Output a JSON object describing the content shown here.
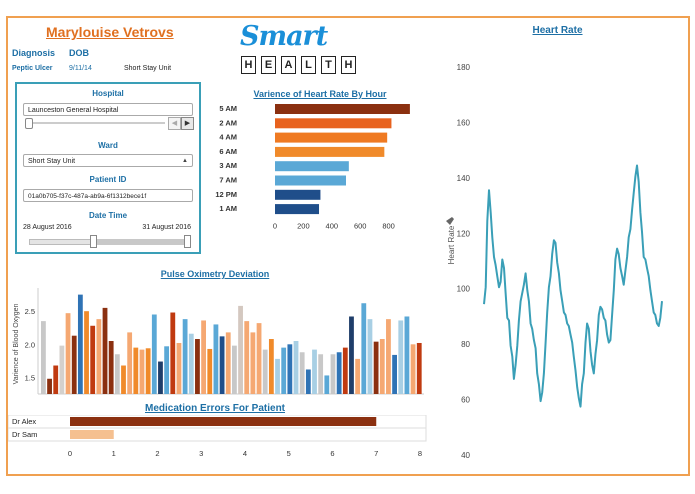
{
  "patient": {
    "name": "Marylouise Vetrovs"
  },
  "info": {
    "diagnosis_label": "Diagnosis",
    "dob_label": "DOB",
    "diagnosis_value": "Peptic Ulcer",
    "dob_value": "9/11/14",
    "unit_value": "Short Stay Unit"
  },
  "logo": {
    "smart": "Smart",
    "health_letters": [
      "H",
      "E",
      "A",
      "L",
      "T",
      "H"
    ]
  },
  "filters": {
    "hospital_label": "Hospital",
    "hospital_value": "Launceston General Hospital",
    "ward_label": "Ward",
    "ward_value": "Short Stay Unit",
    "patient_id_label": "Patient ID",
    "patient_id_value": "01a0b705-f37c-487a-ab9a-6f1312bece1f",
    "date_label": "Date Time",
    "date_start": "28 August 2016",
    "date_end": "31 August 2016",
    "hospital_slider_level": 0.0,
    "date_range_fraction": [
      0.4,
      1.0
    ]
  },
  "heart_variance": {
    "title": "Varience of Heart Rate By Hour",
    "chart_data": {
      "type": "bar",
      "orientation": "horizontal",
      "categories": [
        "5 AM",
        "2 AM",
        "4 AM",
        "6 AM",
        "3 AM",
        "7 AM",
        "12 PM",
        "1 AM"
      ],
      "values": [
        950,
        820,
        790,
        770,
        520,
        500,
        320,
        310
      ],
      "colors": [
        "#8b3010",
        "#e8621e",
        "#ef7a22",
        "#f08a2a",
        "#5aa8d6",
        "#5aa8d6",
        "#1f4e8a",
        "#1f4e8a"
      ],
      "x_ticks": [
        0,
        200,
        400,
        600,
        800
      ],
      "xlim": [
        0,
        1000
      ]
    }
  },
  "pulse": {
    "title": "Pulse Oximetry Deviation",
    "chart_data": {
      "type": "bar",
      "ylabel": "Varience of Blood Oxygen",
      "y_ticks": [
        1.5,
        2.0,
        2.5
      ],
      "ylim": [
        1.25,
        2.85
      ],
      "values": [
        2.35,
        1.48,
        1.68,
        1.98,
        2.47,
        2.13,
        2.75,
        2.5,
        2.28,
        2.38,
        2.55,
        2.05,
        1.85,
        1.68,
        2.18,
        1.95,
        1.92,
        1.94,
        2.45,
        1.74,
        1.97,
        2.48,
        2.02,
        2.38,
        2.16,
        2.08,
        2.36,
        1.93,
        2.3,
        2.12,
        2.18,
        1.98,
        2.58,
        2.35,
        2.18,
        2.32,
        1.92,
        2.08,
        1.78,
        1.95,
        2.0,
        2.05,
        1.88,
        1.62,
        1.92,
        1.85,
        1.53,
        1.85,
        1.88,
        1.95,
        2.42,
        1.78,
        2.62,
        2.38,
        2.04,
        2.08,
        2.38,
        1.84,
        2.36,
        2.42,
        2.0,
        2.02
      ],
      "colors": [
        "#c8c8c8",
        "#8b3010",
        "#c03a10",
        "#d4d0cc",
        "#f5a872",
        "#8b3010",
        "#2f73b5",
        "#f08a2a",
        "#c03a10",
        "#f5a872",
        "#8b3010",
        "#8b3010",
        "#c8c8c8",
        "#f08a2a",
        "#f5a872",
        "#f08a2a",
        "#f5a872",
        "#f08a2a",
        "#5aa8d6",
        "#1f3e6a",
        "#5aa8d6",
        "#c03a10",
        "#f5a872",
        "#5aa8d6",
        "#a8cfe4",
        "#8b3010",
        "#f5a872",
        "#f08a2a",
        "#5aa8d6",
        "#1f4e8a",
        "#f5a872",
        "#c8c8c8",
        "#d4c8c0",
        "#f5a872",
        "#f5a872",
        "#f5a872",
        "#c8c8c8",
        "#f08a2a",
        "#a8cfe4",
        "#5aa8d6",
        "#2f73b5",
        "#a8cfe4",
        "#c8c8c8",
        "#2f73b5",
        "#a8cfe4",
        "#c8c8c8",
        "#5aa8d6",
        "#c8c8c8",
        "#2f73b5",
        "#c03a10",
        "#1f3e6a",
        "#f5a872",
        "#5aa8d6",
        "#a8cfe4",
        "#8b3010",
        "#f5a872",
        "#f5a872",
        "#2f73b5",
        "#a8cfe4",
        "#5aa8d6",
        "#f5a872",
        "#c03a10"
      ]
    }
  },
  "medication": {
    "title": "Medication Errors For Patient",
    "chart_data": {
      "type": "bar",
      "orientation": "horizontal",
      "categories": [
        "Dr Alex",
        "Dr Sam"
      ],
      "values": [
        7,
        1
      ],
      "colors": [
        "#8b3010",
        "#f5c090"
      ],
      "x_ticks": [
        0,
        1,
        2,
        3,
        4,
        5,
        6,
        7,
        8
      ],
      "xlim": [
        0,
        8
      ]
    }
  },
  "heart_rate": {
    "title": "Heart Rate",
    "chart_data": {
      "type": "line",
      "ylabel": "Heart Rate",
      "color": "#3a9fb7",
      "y_ticks": [
        40,
        60,
        80,
        100,
        120,
        140,
        160,
        180
      ],
      "ylim": [
        40,
        185
      ],
      "y": [
        95,
        100,
        125,
        135,
        128,
        118,
        112,
        108,
        105,
        100,
        103,
        110,
        108,
        98,
        90,
        88,
        80,
        75,
        68,
        72,
        80,
        88,
        96,
        98,
        102,
        105,
        100,
        95,
        88,
        85,
        82,
        78,
        70,
        65,
        60,
        62,
        70,
        80,
        92,
        100,
        105,
        112,
        118,
        116,
        110,
        105,
        100,
        95,
        92,
        90,
        88,
        86,
        84,
        80,
        76,
        70,
        65,
        60,
        58,
        65,
        70,
        80,
        88,
        85,
        78,
        72,
        70,
        76,
        82,
        90,
        94,
        92,
        90,
        88,
        84,
        80,
        82,
        90,
        100,
        110,
        115,
        112,
        108,
        104,
        102,
        106,
        112,
        118,
        122,
        128,
        135,
        140,
        145,
        138,
        128,
        120,
        112,
        110,
        108,
        104,
        100,
        95,
        92,
        90,
        88,
        86,
        90,
        95
      ]
    }
  }
}
